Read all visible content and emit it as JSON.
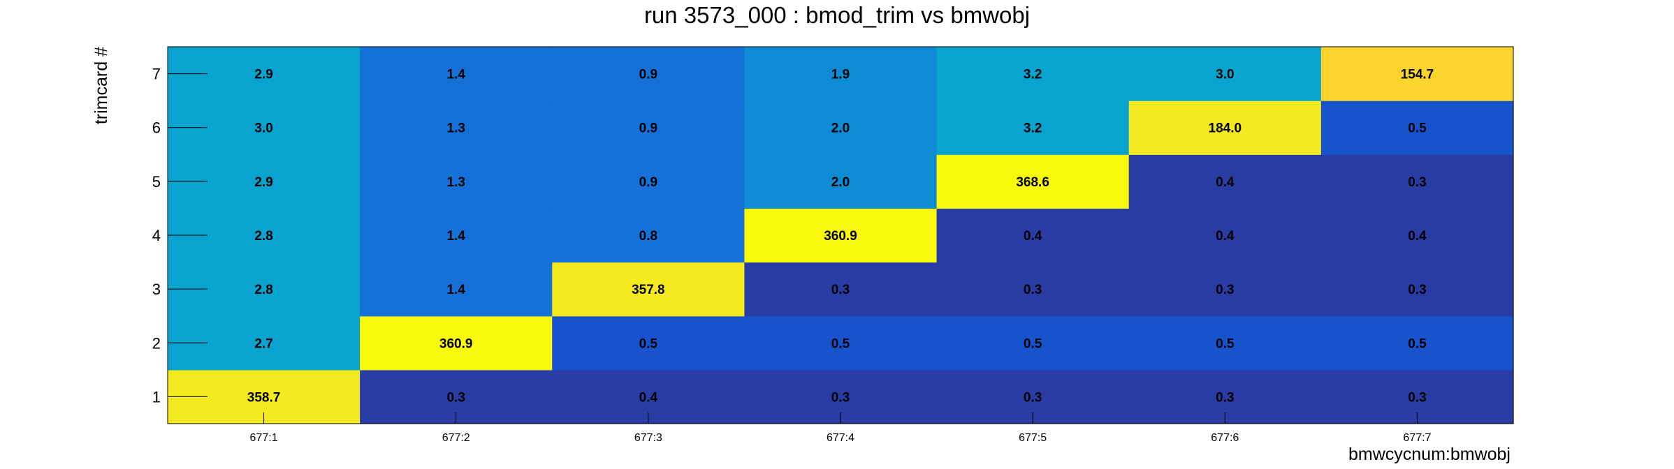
{
  "chart_data": {
    "type": "heatmap",
    "title": "run 3573_000 : bmod_trim vs bmwobj",
    "xlabel": "bmwcycnum:bmwobj",
    "ylabel": "trimcard #",
    "x_categories": [
      "677:1",
      "677:2",
      "677:3",
      "677:4",
      "677:5",
      "677:6",
      "677:7"
    ],
    "y_categories": [
      "1",
      "2",
      "3",
      "4",
      "5",
      "6",
      "7"
    ],
    "values": [
      [
        358.7,
        0.3,
        0.4,
        0.3,
        0.3,
        0.3,
        0.3
      ],
      [
        2.7,
        360.9,
        0.5,
        0.5,
        0.5,
        0.5,
        0.5
      ],
      [
        2.8,
        1.4,
        357.8,
        0.3,
        0.3,
        0.3,
        0.3
      ],
      [
        2.8,
        1.4,
        0.8,
        360.9,
        0.4,
        0.4,
        0.4
      ],
      [
        2.9,
        1.3,
        0.9,
        2.0,
        368.6,
        0.4,
        0.3
      ],
      [
        3.0,
        1.3,
        0.9,
        2.0,
        3.2,
        184.0,
        0.5
      ],
      [
        2.9,
        1.4,
        0.9,
        1.9,
        3.2,
        3.0,
        154.7
      ]
    ],
    "colors": [
      "#283ca4",
      "#1753cd",
      "#1570d8",
      "#0e8cd3",
      "#08a3cf",
      "#fbd42e",
      "#f4ea1f",
      "#f8f90b"
    ],
    "grid": false,
    "legend": "none"
  }
}
